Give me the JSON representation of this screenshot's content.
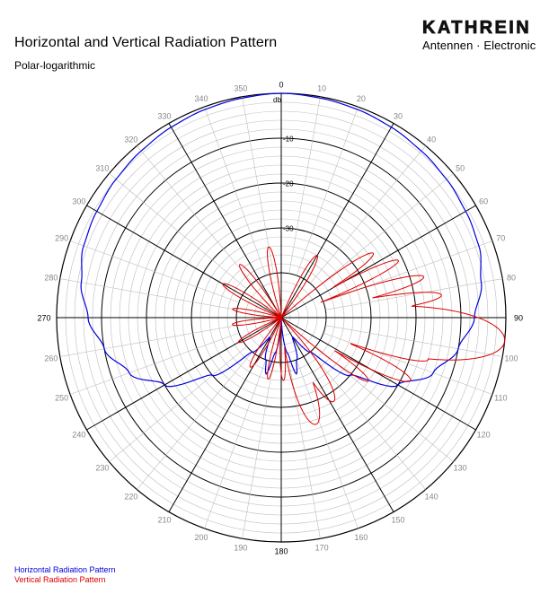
{
  "header": {
    "title": "Horizontal and Vertical Radiation Pattern",
    "subtitle": "Polar-logarithmic"
  },
  "logo": {
    "brand": "KATHREIN",
    "tagline": "Antennen · Electronic"
  },
  "chart_data": {
    "type": "polar",
    "scale": "logarithmic",
    "radial_unit_label": "db",
    "radial_range": [
      -50,
      0
    ],
    "radial_ticks": [
      {
        "value": 0,
        "label": ""
      },
      {
        "value": -10,
        "label": "-10"
      },
      {
        "value": -20,
        "label": "-20"
      },
      {
        "value": -30,
        "label": "-30"
      }
    ],
    "angle_labels": [
      "0",
      "10",
      "20",
      "30",
      "40",
      "50",
      "60",
      "70",
      "80",
      "90",
      "100",
      "110",
      "120",
      "130",
      "140",
      "150",
      "160",
      "170",
      "180",
      "190",
      "200",
      "210",
      "220",
      "230",
      "240",
      "250",
      "260",
      "270",
      "280",
      "290",
      "300",
      "310",
      "320",
      "330",
      "340",
      "350"
    ],
    "series": [
      {
        "name": "Horizontal Radiation Pattern",
        "color": "#0000dd",
        "points": [
          [
            0,
            0
          ],
          [
            10,
            -0.3
          ],
          [
            20,
            -0.6
          ],
          [
            30,
            -1
          ],
          [
            40,
            -1.5
          ],
          [
            50,
            -2
          ],
          [
            60,
            -2.6
          ],
          [
            70,
            -3.2
          ],
          [
            80,
            -4.8
          ],
          [
            90,
            -7
          ],
          [
            100,
            -10
          ],
          [
            110,
            -14
          ],
          [
            120,
            -20
          ],
          [
            130,
            -30
          ],
          [
            140,
            -40
          ],
          [
            150,
            -45
          ],
          [
            160,
            -40
          ],
          [
            165,
            -37
          ],
          [
            170,
            -42
          ],
          [
            180,
            -50
          ],
          [
            190,
            -42
          ],
          [
            195,
            -37
          ],
          [
            200,
            -40
          ],
          [
            210,
            -45
          ],
          [
            220,
            -40
          ],
          [
            230,
            -30
          ],
          [
            240,
            -20
          ],
          [
            250,
            -14
          ],
          [
            260,
            -10
          ],
          [
            270,
            -7
          ],
          [
            280,
            -4.8
          ],
          [
            290,
            -3.2
          ],
          [
            300,
            -2.6
          ],
          [
            310,
            -2
          ],
          [
            320,
            -1.5
          ],
          [
            330,
            -1
          ],
          [
            340,
            -0.6
          ],
          [
            350,
            -0.3
          ],
          [
            360,
            0
          ]
        ]
      },
      {
        "name": "Vertical Radiation Pattern",
        "color": "#dd0000",
        "lobes": [
          {
            "angle": 96,
            "level": 0,
            "width": 9
          },
          {
            "angle": 82,
            "level": -14,
            "width": 4
          },
          {
            "angle": 74,
            "level": -17,
            "width": 4
          },
          {
            "angle": 106,
            "level": -16,
            "width": 4
          },
          {
            "angle": 116,
            "level": -18,
            "width": 5
          },
          {
            "angle": 64,
            "level": -21,
            "width": 4
          },
          {
            "angle": 55,
            "level": -25,
            "width": 5
          },
          {
            "angle": 126,
            "level": -26,
            "width": 5
          },
          {
            "angle": 148,
            "level": -28,
            "width": 9
          },
          {
            "angle": 162,
            "level": -25,
            "width": 10
          },
          {
            "angle": 178,
            "level": -36,
            "width": 6
          },
          {
            "angle": 192,
            "level": -36,
            "width": 6
          },
          {
            "angle": 212,
            "level": -37,
            "width": 8
          },
          {
            "angle": 240,
            "level": -39,
            "width": 8
          },
          {
            "angle": 262,
            "level": -39,
            "width": 7
          },
          {
            "angle": 280,
            "level": -39,
            "width": 7
          },
          {
            "angle": 300,
            "level": -35,
            "width": 7
          },
          {
            "angle": 322,
            "level": -35,
            "width": 7
          },
          {
            "angle": 350,
            "level": -34,
            "width": 7
          },
          {
            "angle": 30,
            "level": -34,
            "width": 7
          }
        ]
      }
    ]
  },
  "legend": {
    "horizontal": "Horizontal Radiation Pattern",
    "vertical": "Vertical Radiation Pattern"
  }
}
